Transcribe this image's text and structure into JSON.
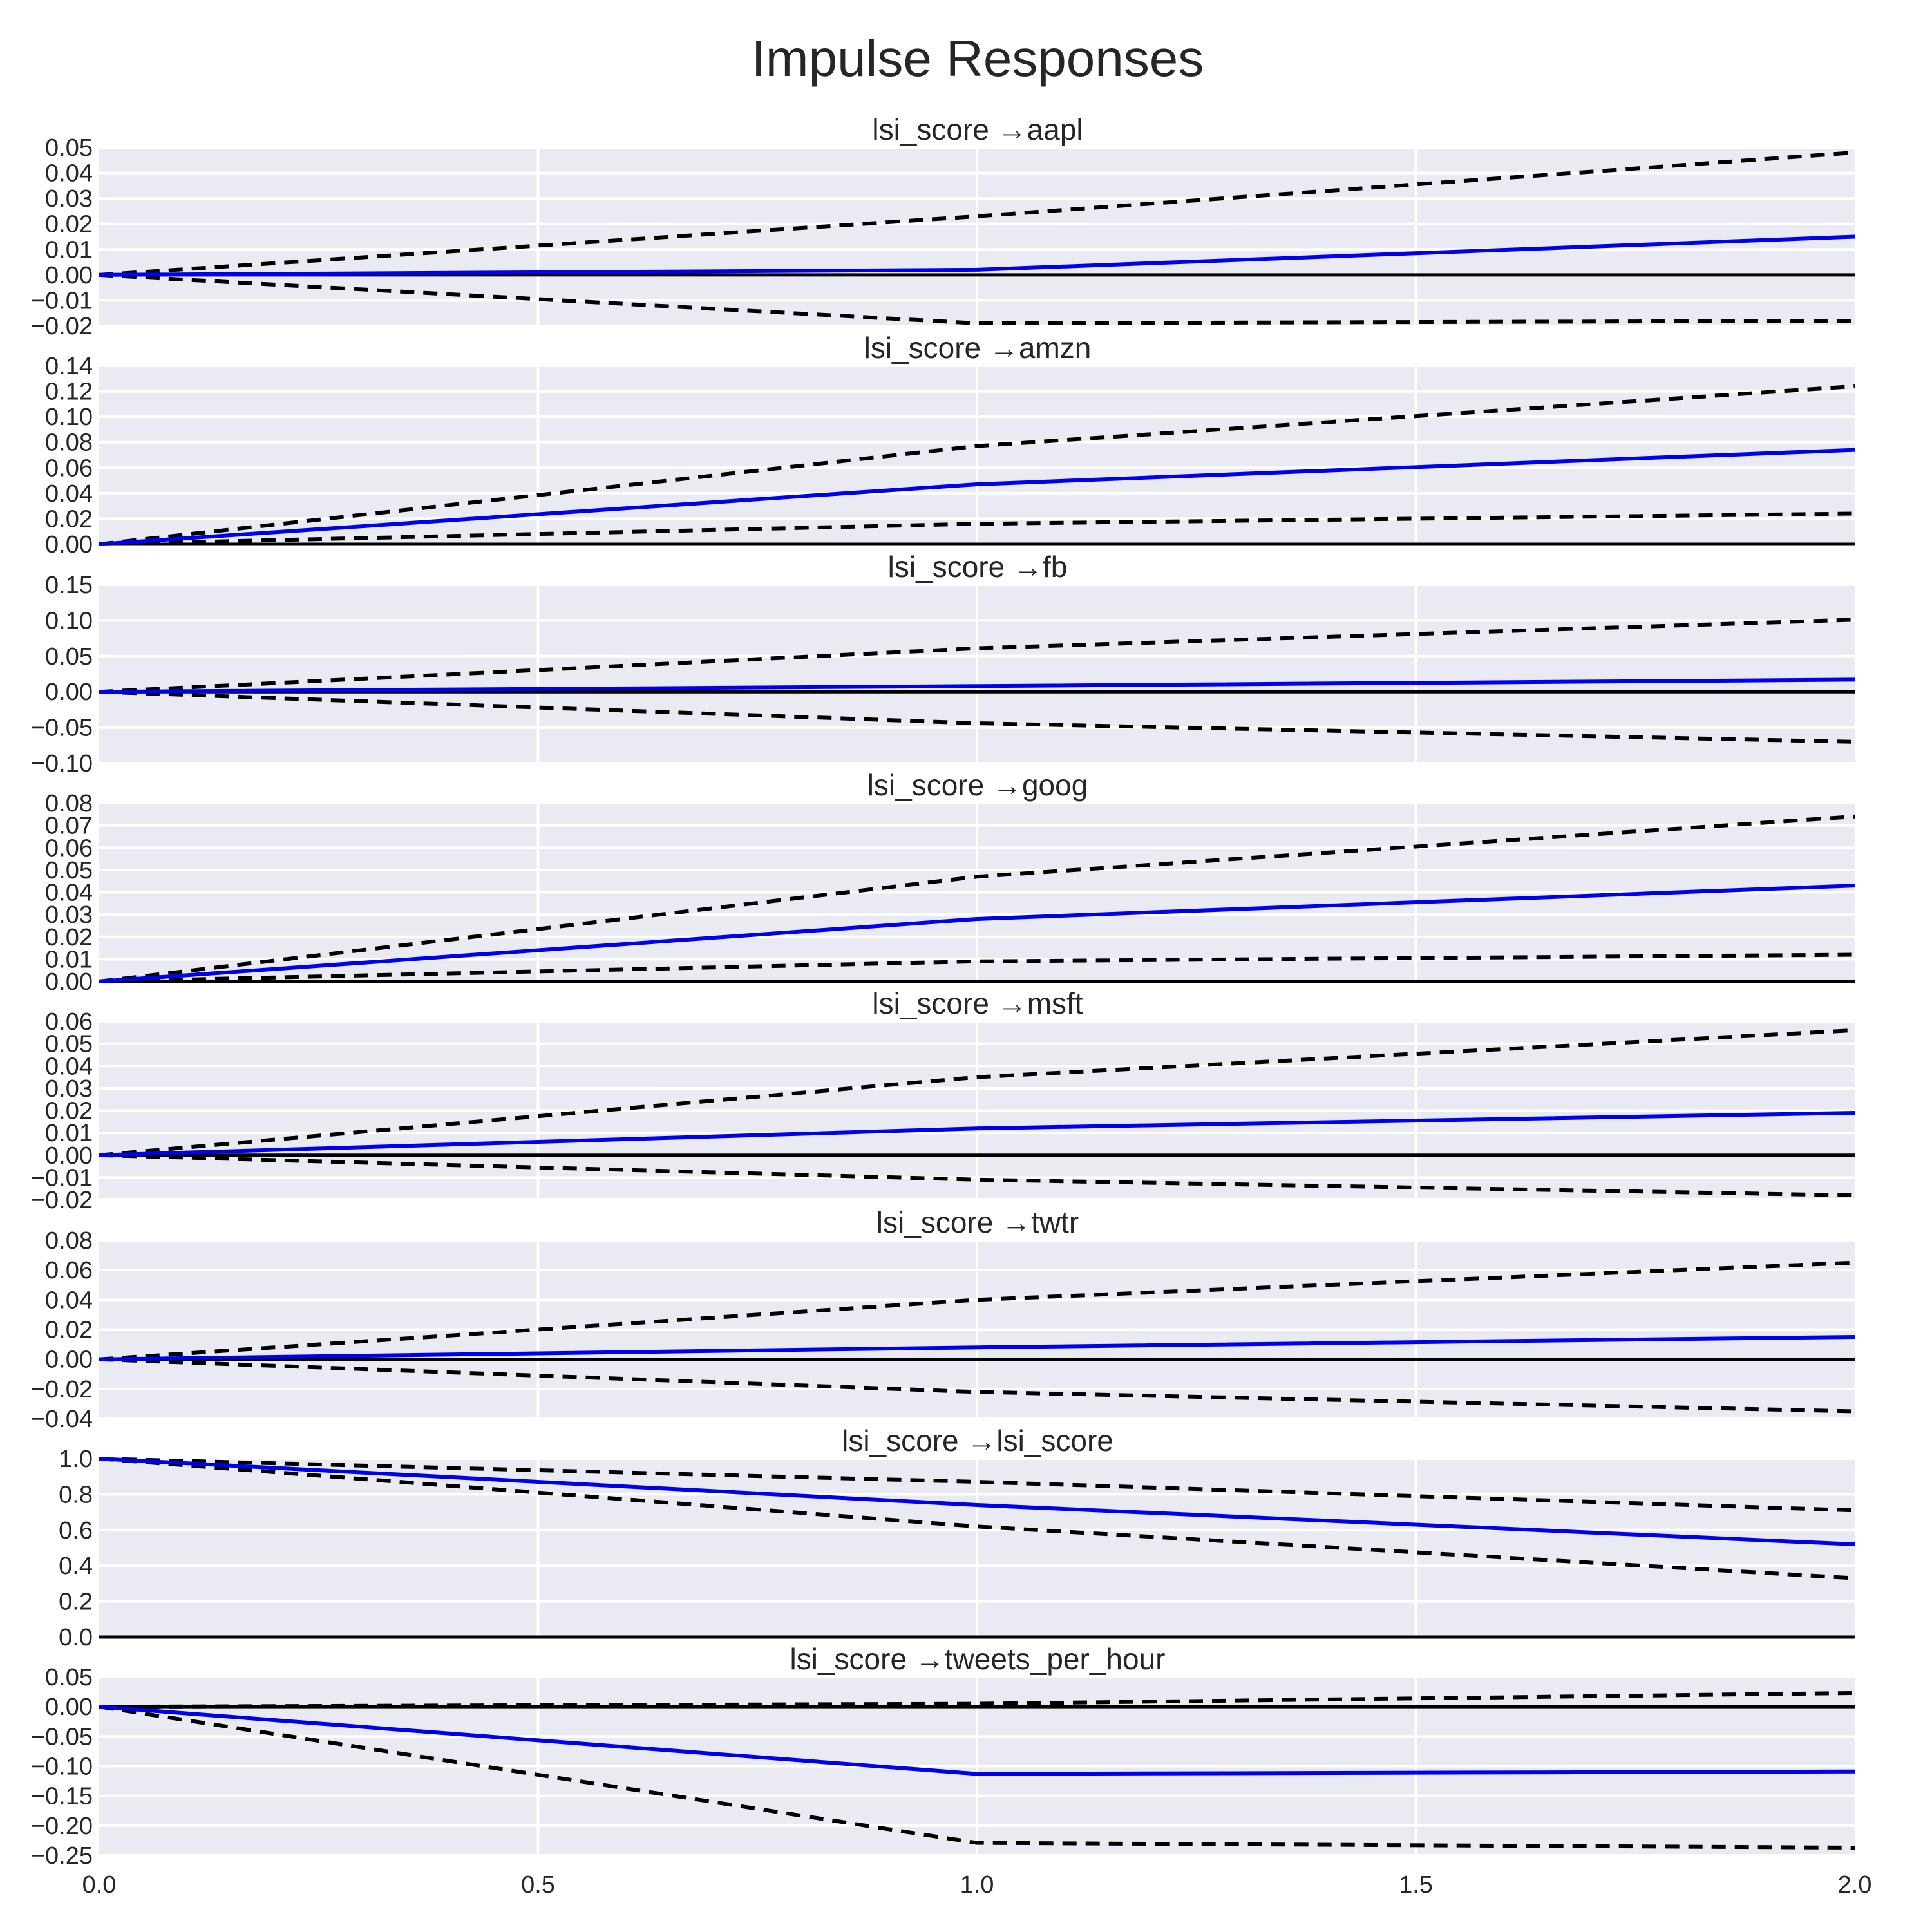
{
  "chart_data": {
    "type": "line",
    "title": "Impulse Responses",
    "x": [
      0,
      1,
      2
    ],
    "xlim": [
      0.0,
      2.0
    ],
    "xticks": [
      "0.0",
      "0.5",
      "1.0",
      "1.5",
      "2.0"
    ],
    "colors": {
      "response": "#0000ee",
      "bands": "#000000",
      "background": "#eaeaf2"
    },
    "panels": [
      {
        "title": "lsi_score →aapl",
        "ylim": [
          -0.02,
          0.05
        ],
        "yticks": [
          "0.05",
          "0.04",
          "0.03",
          "0.02",
          "0.01",
          "0.00",
          "−0.01",
          "−0.02"
        ],
        "ytick_values": [
          0.05,
          0.04,
          0.03,
          0.02,
          0.01,
          0.0,
          -0.01,
          -0.02
        ],
        "response": [
          0,
          0.002,
          0.015
        ],
        "upper": [
          0,
          0.023,
          0.048
        ],
        "lower": [
          0,
          -0.019,
          -0.018
        ]
      },
      {
        "title": "lsi_score →amzn",
        "ylim": [
          0.0,
          0.14
        ],
        "yticks": [
          "0.14",
          "0.12",
          "0.10",
          "0.08",
          "0.06",
          "0.04",
          "0.02",
          "0.00"
        ],
        "ytick_values": [
          0.14,
          0.12,
          0.1,
          0.08,
          0.06,
          0.04,
          0.02,
          0.0
        ],
        "response": [
          0,
          0.047,
          0.074
        ],
        "upper": [
          0,
          0.077,
          0.124
        ],
        "lower": [
          0,
          0.016,
          0.024
        ]
      },
      {
        "title": "lsi_score →fb",
        "ylim": [
          -0.1,
          0.15
        ],
        "yticks": [
          "0.15",
          "0.10",
          "0.05",
          "0.00",
          "−0.05",
          "−0.10"
        ],
        "ytick_values": [
          0.15,
          0.1,
          0.05,
          0.0,
          -0.05,
          -0.1
        ],
        "response": [
          0,
          0.008,
          0.017
        ],
        "upper": [
          0,
          0.061,
          0.101
        ],
        "lower": [
          0,
          -0.044,
          -0.07
        ]
      },
      {
        "title": "lsi_score →goog",
        "ylim": [
          0.0,
          0.08
        ],
        "yticks": [
          "0.08",
          "0.07",
          "0.06",
          "0.05",
          "0.04",
          "0.03",
          "0.02",
          "0.01",
          "0.00"
        ],
        "ytick_values": [
          0.08,
          0.07,
          0.06,
          0.05,
          0.04,
          0.03,
          0.02,
          0.01,
          0.0
        ],
        "response": [
          0,
          0.028,
          0.043
        ],
        "upper": [
          0,
          0.047,
          0.074
        ],
        "lower": [
          0,
          0.009,
          0.012
        ]
      },
      {
        "title": "lsi_score →msft",
        "ylim": [
          -0.02,
          0.06
        ],
        "yticks": [
          "0.06",
          "0.05",
          "0.04",
          "0.03",
          "0.02",
          "0.01",
          "0.00",
          "−0.01",
          "−0.02"
        ],
        "ytick_values": [
          0.06,
          0.05,
          0.04,
          0.03,
          0.02,
          0.01,
          0.0,
          -0.01,
          -0.02
        ],
        "response": [
          0,
          0.012,
          0.019
        ],
        "upper": [
          0,
          0.035,
          0.056
        ],
        "lower": [
          0,
          -0.011,
          -0.018
        ]
      },
      {
        "title": "lsi_score →twtr",
        "ylim": [
          -0.04,
          0.08
        ],
        "yticks": [
          "0.08",
          "0.06",
          "0.04",
          "0.02",
          "0.00",
          "−0.02",
          "−0.04"
        ],
        "ytick_values": [
          0.08,
          0.06,
          0.04,
          0.02,
          0.0,
          -0.02,
          -0.04
        ],
        "response": [
          0,
          0.008,
          0.015
        ],
        "upper": [
          0,
          0.04,
          0.065
        ],
        "lower": [
          0,
          -0.022,
          -0.035
        ]
      },
      {
        "title": "lsi_score →lsi_score",
        "ylim": [
          0.0,
          1.0
        ],
        "yticks": [
          "1.0",
          "0.8",
          "0.6",
          "0.4",
          "0.2",
          "0.0"
        ],
        "ytick_values": [
          1.0,
          0.8,
          0.6,
          0.4,
          0.2,
          0.0
        ],
        "response": [
          1.0,
          0.74,
          0.52
        ],
        "upper": [
          1.0,
          0.87,
          0.71
        ],
        "lower": [
          1.0,
          0.62,
          0.33
        ]
      },
      {
        "title": "lsi_score →tweets_per_hour",
        "ylim": [
          -0.25,
          0.05
        ],
        "yticks": [
          "0.05",
          "0.00",
          "−0.05",
          "−0.10",
          "−0.15",
          "−0.20",
          "−0.25"
        ],
        "ytick_values": [
          0.05,
          0.0,
          -0.05,
          -0.1,
          -0.15,
          -0.2,
          -0.25
        ],
        "response": [
          0,
          -0.113,
          -0.109
        ],
        "upper": [
          0,
          0.005,
          0.023
        ],
        "lower": [
          0,
          -0.229,
          -0.237
        ]
      }
    ]
  }
}
